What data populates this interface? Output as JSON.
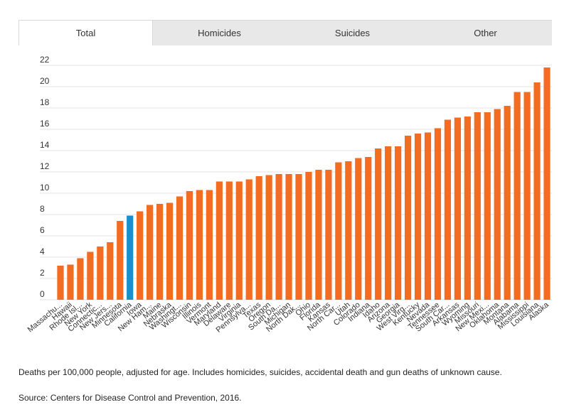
{
  "tabs": [
    {
      "label": "Total",
      "active": true
    },
    {
      "label": "Homicides",
      "active": false
    },
    {
      "label": "Suicides",
      "active": false
    },
    {
      "label": "Other",
      "active": false
    }
  ],
  "note": "Deaths per 100,000 people, adjusted for age. Includes homicides, suicides, accidental death and gun deaths of unknown cause.",
  "source": "Source: Centers for Disease Control and Prevention, 2016.",
  "colors": {
    "bar": "#f26c21",
    "highlight": "#1a8fc9",
    "grid": "#e3e3e3"
  },
  "chart_data": {
    "type": "bar",
    "ylim": [
      0,
      22
    ],
    "yticks": [
      0,
      2,
      4,
      6,
      8,
      10,
      12,
      14,
      16,
      18,
      20,
      22
    ],
    "grid": true,
    "highlight_category": "California",
    "categories": [
      "Massachu...",
      "Hawaii",
      "Rhode Isl...",
      "New York",
      "Connectic...",
      "New Jers...",
      "Minnesota",
      "California",
      "Iowa",
      "New Ham...",
      "Maine",
      "Nebraska",
      "Washingt...",
      "Wisconsin",
      "Illinois",
      "Vermont",
      "Maryland",
      "Delaware",
      "Virginia",
      "Pennsylva...",
      "Texas",
      "Oregon",
      "South Da...",
      "Michigan",
      "North Dak...",
      "Ohio",
      "Florida",
      "Kansas",
      "North Car...",
      "Utah",
      "Colorado",
      "Indiana",
      "Idaho",
      "Arizona",
      "Georgia",
      "West Virg...",
      "Kentucky",
      "Nevada",
      "Tennessee",
      "South Car...",
      "Arkansas",
      "Wyoming",
      "Missouri",
      "New Mexi...",
      "Oklahoma",
      "Montana",
      "Alabama",
      "Mississippi",
      "Louisiana",
      "Alaska"
    ],
    "values": [
      3.2,
      3.3,
      3.9,
      4.5,
      5.0,
      5.4,
      7.4,
      7.9,
      8.3,
      8.9,
      9.0,
      9.1,
      9.7,
      10.2,
      10.3,
      10.3,
      11.1,
      11.1,
      11.1,
      11.3,
      11.6,
      11.7,
      11.8,
      11.8,
      11.8,
      12.0,
      12.2,
      12.2,
      12.9,
      13.0,
      13.3,
      13.4,
      14.2,
      14.4,
      14.4,
      15.4,
      15.6,
      15.7,
      16.1,
      16.9,
      17.1,
      17.2,
      17.6,
      17.6,
      17.9,
      18.2,
      19.5,
      19.5,
      20.4,
      21.8
    ]
  }
}
